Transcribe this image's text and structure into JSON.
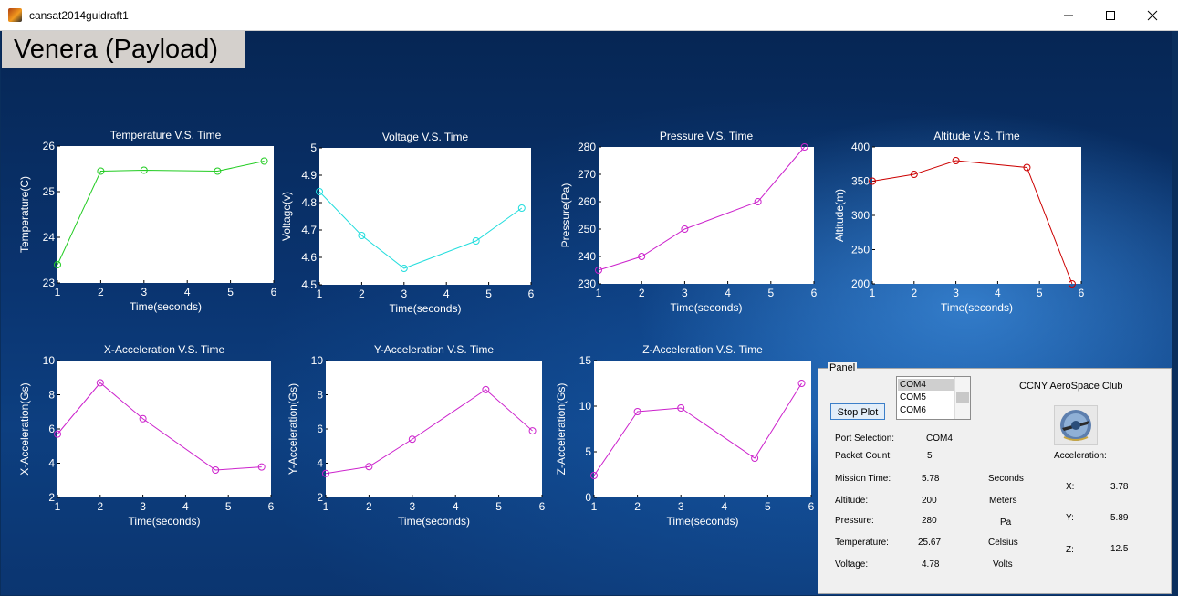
{
  "window": {
    "title": "cansat2014guidraft1",
    "controls": {
      "minimize": "minimize-icon",
      "maximize": "maximize-icon",
      "close": "close-icon"
    }
  },
  "header": {
    "title": "Venera (Payload)"
  },
  "colors": {
    "temperature": "#22cc22",
    "voltage": "#22dddd",
    "pressure": "#cc22cc",
    "altitude": "#cc0000",
    "x_accel": "#cc22cc",
    "y_accel": "#cc22cc",
    "z_accel": "#cc22cc"
  },
  "chart_data": [
    {
      "id": "temperature",
      "type": "line",
      "title": "Temperature V.S. Time",
      "xlabel": "Time(seconds)",
      "ylabel": "Temperature(C)",
      "x": [
        1,
        2,
        3,
        4.7,
        5.78
      ],
      "y": [
        23.4,
        25.45,
        25.47,
        25.45,
        25.67
      ],
      "xlim": [
        1,
        6
      ],
      "ylim": [
        23,
        26
      ],
      "xticks": [
        "1",
        "2",
        "3",
        "4",
        "5",
        "6"
      ],
      "yticks": [
        "23",
        "24",
        "25",
        "26"
      ]
    },
    {
      "id": "voltage",
      "type": "line",
      "title": "Voltage V.S. Time",
      "xlabel": "Time(seconds)",
      "ylabel": "Voltage(v)",
      "x": [
        1,
        2,
        3,
        4.7,
        5.78
      ],
      "y": [
        4.84,
        4.68,
        4.56,
        4.66,
        4.78
      ],
      "xlim": [
        1,
        6
      ],
      "ylim": [
        4.5,
        5
      ],
      "xticks": [
        "1",
        "2",
        "3",
        "4",
        "5",
        "6"
      ],
      "yticks": [
        "4.5",
        "4.6",
        "4.7",
        "4.8",
        "4.9",
        "5"
      ]
    },
    {
      "id": "pressure",
      "type": "line",
      "title": "Pressure V.S. Time",
      "xlabel": "Time(seconds)",
      "ylabel": "Pressure(Pa)",
      "x": [
        1,
        2,
        3,
        4.7,
        5.78
      ],
      "y": [
        235,
        240,
        250,
        260,
        280
      ],
      "xlim": [
        1,
        6
      ],
      "ylim": [
        230,
        280
      ],
      "xticks": [
        "1",
        "2",
        "3",
        "4",
        "5",
        "6"
      ],
      "yticks": [
        "230",
        "240",
        "250",
        "260",
        "270",
        "280"
      ]
    },
    {
      "id": "altitude",
      "type": "line",
      "title": "Altitude V.S. Time",
      "xlabel": "Time(seconds)",
      "ylabel": "Altitude(m)",
      "x": [
        1,
        2,
        3,
        4.7,
        5.78
      ],
      "y": [
        350,
        360,
        380,
        370,
        200
      ],
      "xlim": [
        1,
        6
      ],
      "ylim": [
        200,
        400
      ],
      "xticks": [
        "1",
        "2",
        "3",
        "4",
        "5",
        "6"
      ],
      "yticks": [
        "200",
        "250",
        "300",
        "350",
        "400"
      ]
    },
    {
      "id": "x_accel",
      "type": "line",
      "title": "X-Acceleration V.S. Time",
      "xlabel": "Time(seconds)",
      "ylabel": "X-Acceleration(Gs)",
      "x": [
        1,
        2,
        3,
        4.7,
        5.78
      ],
      "y": [
        5.7,
        8.7,
        6.6,
        3.6,
        3.78
      ],
      "xlim": [
        1,
        6
      ],
      "ylim": [
        2,
        10
      ],
      "xticks": [
        "1",
        "2",
        "3",
        "4",
        "5",
        "6"
      ],
      "yticks": [
        "2",
        "4",
        "6",
        "8",
        "10"
      ]
    },
    {
      "id": "y_accel",
      "type": "line",
      "title": "Y-Acceleration V.S. Time",
      "xlabel": "Time(seconds)",
      "ylabel": "Y-Acceleration(Gs)",
      "x": [
        1,
        2,
        3,
        4.7,
        5.78
      ],
      "y": [
        3.4,
        3.8,
        5.4,
        8.3,
        5.89
      ],
      "xlim": [
        1,
        6
      ],
      "ylim": [
        2,
        10
      ],
      "xticks": [
        "1",
        "2",
        "3",
        "4",
        "5",
        "6"
      ],
      "yticks": [
        "2",
        "4",
        "6",
        "8",
        "10"
      ]
    },
    {
      "id": "z_accel",
      "type": "line",
      "title": "Z-Acceleration V.S. Time",
      "xlabel": "Time(seconds)",
      "ylabel": "Z-Acceleration(Gs)",
      "x": [
        1,
        2,
        3,
        4.7,
        5.78
      ],
      "y": [
        2.4,
        9.4,
        9.8,
        4.3,
        12.5
      ],
      "xlim": [
        1,
        6
      ],
      "ylim": [
        0,
        15
      ],
      "xticks": [
        "1",
        "2",
        "3",
        "4",
        "5",
        "6"
      ],
      "yticks": [
        "0",
        "5",
        "10",
        "15"
      ]
    }
  ],
  "panel": {
    "title": "Panel",
    "stop_button": "Stop Plot",
    "ports": [
      "COM4",
      "COM5",
      "COM6"
    ],
    "selected_port_index": 0,
    "club_name": "CCNY AeroSpace Club",
    "logo_icon": "club-logo-icon",
    "port_selection_label": "Port Selection:",
    "port_selection_value": "COM4",
    "packet_count_label": "Packet Count:",
    "packet_count_value": "5",
    "mission_time_label": "Mission Time:",
    "mission_time_value": "5.78",
    "mission_time_unit": "Seconds",
    "altitude_label": "Altitude:",
    "altitude_value": "200",
    "altitude_unit": "Meters",
    "pressure_label": "Pressure:",
    "pressure_value": "280",
    "pressure_unit": "Pa",
    "temperature_label": "Temperature:",
    "temperature_value": "25.67",
    "temperature_unit": "Celsius",
    "voltage_label": "Voltage:",
    "voltage_value": "4.78",
    "voltage_unit": "Volts",
    "acceleration_label": "Acceleration:",
    "x_label": "X:",
    "x_value": "3.78",
    "y_label": "Y:",
    "y_value": "5.89",
    "z_label": "Z:",
    "z_value": "12.5"
  }
}
